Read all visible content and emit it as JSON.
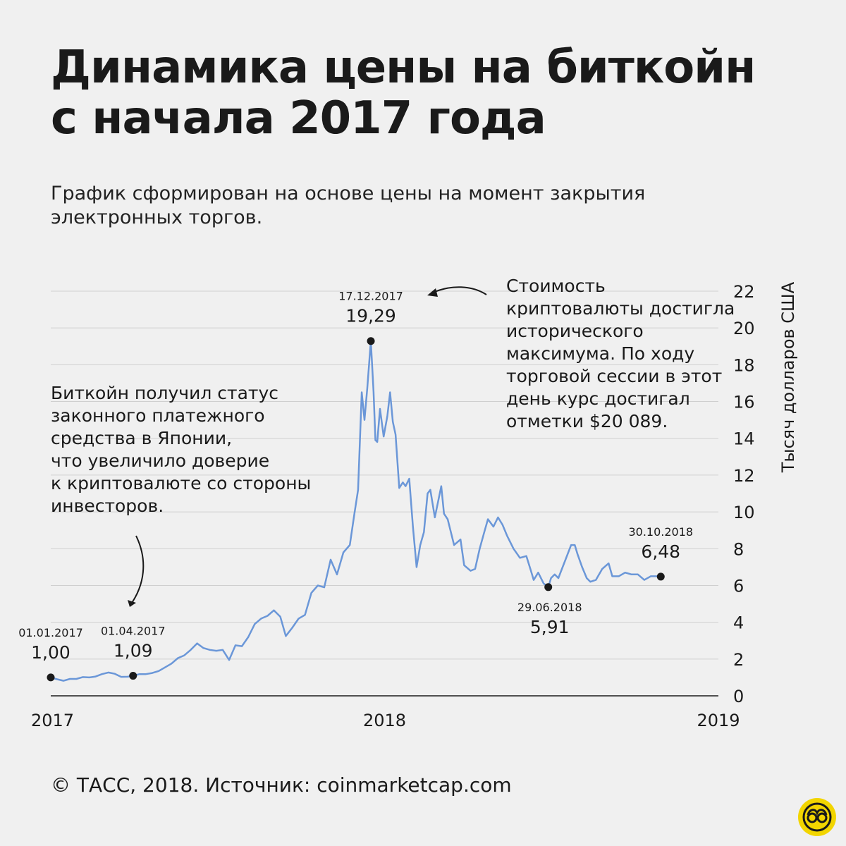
{
  "title_lines": [
    "Динамика цены на биткойн",
    "с начала 2017 года"
  ],
  "subtitle_lines": [
    "График сформирован на основе цены на момент закрытия",
    "электронных торгов."
  ],
  "annotation_japan_lines": [
    "Биткойн получил статус",
    "законного платежного",
    "средства в Японии,",
    "что увеличило доверие",
    "к криптовалюте со стороны",
    "инвесторов."
  ],
  "annotation_peak_lines": [
    "Стоимость",
    "криптовалюты достигла",
    "исторического",
    "максимума. По ходу",
    "торговой сессии в этот",
    "день курс достигал",
    "отметки $20 089."
  ],
  "footer": "© ТАСС, 2018. Источник: coinmarketcap.com",
  "colors": {
    "line": "#6b97d8",
    "grid": "#cfcfcf",
    "text": "#1a1a1a",
    "background": "#f0f0f0",
    "logo": "#f2d500"
  },
  "logo_icon": "tass-logo-icon",
  "chart_data": {
    "type": "line",
    "title": "Динамика цены на биткойн с начала 2017 года",
    "ylabel": "Тысяч долларов США",
    "xlabel": "",
    "ylim": [
      0,
      22
    ],
    "xlim": [
      "2017-01-01",
      "2019-01-01"
    ],
    "yticks": [
      0,
      2,
      4,
      6,
      8,
      10,
      12,
      14,
      16,
      18,
      20,
      22
    ],
    "xticks": [
      {
        "date": "2017-01-01",
        "label": "2017"
      },
      {
        "date": "2018-01-01",
        "label": "2018"
      },
      {
        "date": "2019-01-01",
        "label": "2019"
      }
    ],
    "grid": true,
    "series": [
      {
        "values": [
          [
            "2017-01-01",
            1.0
          ],
          [
            "2017-01-08",
            0.9
          ],
          [
            "2017-01-15",
            0.82
          ],
          [
            "2017-01-22",
            0.92
          ],
          [
            "2017-01-29",
            0.92
          ],
          [
            "2017-02-05",
            1.02
          ],
          [
            "2017-02-12",
            1.0
          ],
          [
            "2017-02-19",
            1.05
          ],
          [
            "2017-02-26",
            1.18
          ],
          [
            "2017-03-05",
            1.27
          ],
          [
            "2017-03-12",
            1.2
          ],
          [
            "2017-03-19",
            1.03
          ],
          [
            "2017-03-26",
            1.04
          ],
          [
            "2017-04-01",
            1.09
          ],
          [
            "2017-04-08",
            1.18
          ],
          [
            "2017-04-15",
            1.18
          ],
          [
            "2017-04-22",
            1.24
          ],
          [
            "2017-04-29",
            1.35
          ],
          [
            "2017-05-06",
            1.55
          ],
          [
            "2017-05-13",
            1.75
          ],
          [
            "2017-05-20",
            2.05
          ],
          [
            "2017-05-27",
            2.2
          ],
          [
            "2017-06-03",
            2.5
          ],
          [
            "2017-06-10",
            2.85
          ],
          [
            "2017-06-17",
            2.6
          ],
          [
            "2017-06-24",
            2.5
          ],
          [
            "2017-07-01",
            2.45
          ],
          [
            "2017-07-08",
            2.5
          ],
          [
            "2017-07-15",
            1.95
          ],
          [
            "2017-07-22",
            2.75
          ],
          [
            "2017-07-29",
            2.7
          ],
          [
            "2017-08-05",
            3.2
          ],
          [
            "2017-08-12",
            3.9
          ],
          [
            "2017-08-19",
            4.2
          ],
          [
            "2017-08-26",
            4.35
          ],
          [
            "2017-09-02",
            4.65
          ],
          [
            "2017-09-09",
            4.3
          ],
          [
            "2017-09-15",
            3.25
          ],
          [
            "2017-09-22",
            3.7
          ],
          [
            "2017-09-29",
            4.2
          ],
          [
            "2017-10-06",
            4.4
          ],
          [
            "2017-10-13",
            5.6
          ],
          [
            "2017-10-20",
            6.0
          ],
          [
            "2017-10-27",
            5.9
          ],
          [
            "2017-11-03",
            7.4
          ],
          [
            "2017-11-10",
            6.6
          ],
          [
            "2017-11-17",
            7.8
          ],
          [
            "2017-11-24",
            8.2
          ],
          [
            "2017-11-29",
            9.9
          ],
          [
            "2017-12-03",
            11.2
          ],
          [
            "2017-12-07",
            16.5
          ],
          [
            "2017-12-10",
            15.0
          ],
          [
            "2017-12-13",
            16.7
          ],
          [
            "2017-12-17",
            19.29
          ],
          [
            "2017-12-20",
            16.5
          ],
          [
            "2017-12-22",
            13.9
          ],
          [
            "2017-12-24",
            13.8
          ],
          [
            "2017-12-27",
            15.6
          ],
          [
            "2017-12-31",
            14.1
          ],
          [
            "2018-01-04",
            15.2
          ],
          [
            "2018-01-07",
            16.5
          ],
          [
            "2018-01-10",
            14.9
          ],
          [
            "2018-01-13",
            14.2
          ],
          [
            "2018-01-17",
            11.3
          ],
          [
            "2018-01-21",
            11.6
          ],
          [
            "2018-01-24",
            11.4
          ],
          [
            "2018-01-28",
            11.8
          ],
          [
            "2018-02-01",
            9.2
          ],
          [
            "2018-02-05",
            7.0
          ],
          [
            "2018-02-09",
            8.2
          ],
          [
            "2018-02-13",
            8.9
          ],
          [
            "2018-02-17",
            11.0
          ],
          [
            "2018-02-20",
            11.2
          ],
          [
            "2018-02-25",
            9.7
          ],
          [
            "2018-03-04",
            11.4
          ],
          [
            "2018-03-07",
            9.9
          ],
          [
            "2018-03-11",
            9.6
          ],
          [
            "2018-03-18",
            8.2
          ],
          [
            "2018-03-25",
            8.5
          ],
          [
            "2018-03-29",
            7.1
          ],
          [
            "2018-04-05",
            6.8
          ],
          [
            "2018-04-10",
            6.9
          ],
          [
            "2018-04-15",
            8.0
          ],
          [
            "2018-04-20",
            8.9
          ],
          [
            "2018-04-24",
            9.6
          ],
          [
            "2018-04-30",
            9.2
          ],
          [
            "2018-05-05",
            9.7
          ],
          [
            "2018-05-10",
            9.3
          ],
          [
            "2018-05-15",
            8.7
          ],
          [
            "2018-05-22",
            8.0
          ],
          [
            "2018-05-29",
            7.5
          ],
          [
            "2018-06-05",
            7.6
          ],
          [
            "2018-06-10",
            6.8
          ],
          [
            "2018-06-13",
            6.3
          ],
          [
            "2018-06-18",
            6.7
          ],
          [
            "2018-06-24",
            6.1
          ],
          [
            "2018-06-29",
            5.91
          ],
          [
            "2018-07-02",
            6.4
          ],
          [
            "2018-07-06",
            6.6
          ],
          [
            "2018-07-10",
            6.4
          ],
          [
            "2018-07-17",
            7.3
          ],
          [
            "2018-07-24",
            8.2
          ],
          [
            "2018-07-28",
            8.2
          ],
          [
            "2018-07-31",
            7.7
          ],
          [
            "2018-08-05",
            7.0
          ],
          [
            "2018-08-10",
            6.4
          ],
          [
            "2018-08-14",
            6.2
          ],
          [
            "2018-08-20",
            6.3
          ],
          [
            "2018-08-27",
            6.9
          ],
          [
            "2018-09-03",
            7.2
          ],
          [
            "2018-09-07",
            6.5
          ],
          [
            "2018-09-14",
            6.5
          ],
          [
            "2018-09-21",
            6.7
          ],
          [
            "2018-09-28",
            6.6
          ],
          [
            "2018-10-05",
            6.6
          ],
          [
            "2018-10-12",
            6.3
          ],
          [
            "2018-10-19",
            6.5
          ],
          [
            "2018-10-26",
            6.5
          ],
          [
            "2018-10-30",
            6.48
          ]
        ]
      }
    ],
    "markers": [
      {
        "date": "2017-01-01",
        "value": 1.0,
        "date_label": "01.01.2017",
        "value_label": "1,00"
      },
      {
        "date": "2017-04-01",
        "value": 1.09,
        "date_label": "01.04.2017",
        "value_label": "1,09"
      },
      {
        "date": "2017-12-17",
        "value": 19.29,
        "date_label": "17.12.2017",
        "value_label": "19,29"
      },
      {
        "date": "2018-06-29",
        "value": 5.91,
        "date_label": "29.06.2018",
        "value_label": "5,91"
      },
      {
        "date": "2018-10-30",
        "value": 6.48,
        "date_label": "30.10.2018",
        "value_label": "6,48"
      }
    ]
  }
}
